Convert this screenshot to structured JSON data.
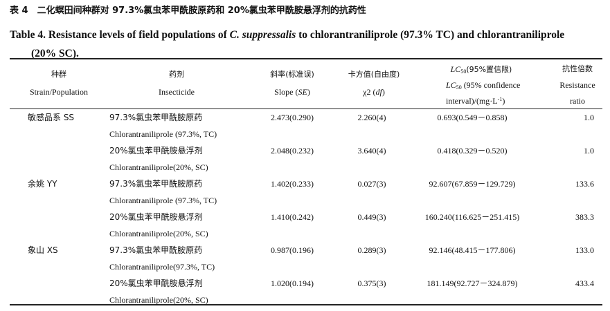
{
  "title_cn": "表 4　二化螟田间种群对 97.3%氯虫苯甲酰胺原药和 20%氯虫苯甲酰胺悬浮剂的抗药性",
  "title_en": [
    "Table 4. Resistance levels of field populations of ",
    "C. suppressalis",
    " to chlorantraniliprole (97.3% TC) and chlorantraniliprole",
    "(20% SC)."
  ],
  "header": {
    "strain": [
      "种群",
      "Strain/Population"
    ],
    "insecticide": [
      "药剂",
      "Insecticide"
    ],
    "slope": [
      "斜率(标准误)",
      [
        "Slope (",
        "SE",
        ")"
      ]
    ],
    "chi2": [
      "卡方值(自由度)",
      [
        "χ2 (",
        "df",
        ")"
      ]
    ],
    "lc50": [
      [
        "LC",
        "50",
        "(95%置信限)"
      ],
      [
        "LC",
        "50",
        " (95% confidence"
      ],
      [
        "interval)/(mg·L",
        "-1",
        ")"
      ]
    ],
    "ratio": [
      "抗性倍数",
      "Resistance",
      "ratio"
    ]
  },
  "populations": [
    {
      "name": "敏感品系 SS",
      "rows": [
        {
          "insecticide_cn": "97.3%氯虫苯甲酰胺原药",
          "insecticide_en": "Chlorantraniliprole (97.3%, TC)",
          "slope": "2.473(0.290)",
          "chi2": "2.260(4)",
          "lc50": "0.693(0.549－0.858)",
          "ratio": "1.0"
        },
        {
          "insecticide_cn": "20%氯虫苯甲酰胺悬浮剂",
          "insecticide_en": "Chlorantraniliprole(20%, SC)",
          "slope": "2.048(0.232)",
          "chi2": "3.640(4)",
          "lc50": "0.418(0.329－0.520)",
          "ratio": "1.0"
        }
      ]
    },
    {
      "name": "余姚 YY",
      "rows": [
        {
          "insecticide_cn": "97.3%氯虫苯甲酰胺原药",
          "insecticide_en": "Chlorantraniliprole (97.3%, TC)",
          "slope": "1.402(0.233)",
          "chi2": "0.027(3)",
          "lc50": "92.607(67.859－129.729)",
          "ratio": "133.6"
        },
        {
          "insecticide_cn": "20%氯虫苯甲酰胺悬浮剂",
          "insecticide_en": "Chlorantraniliprole(20%, SC)",
          "slope": "1.410(0.242)",
          "chi2": "0.449(3)",
          "lc50": "160.240(116.625－251.415)",
          "ratio": "383.3"
        }
      ]
    },
    {
      "name": "象山 XS",
      "rows": [
        {
          "insecticide_cn": "97.3%氯虫苯甲酰胺原药",
          "insecticide_en": "Chlorantraniliprole(97.3%, TC)",
          "slope": "0.987(0.196)",
          "chi2": "0.289(3)",
          "lc50": "92.146(48.415－177.806)",
          "ratio": "133.0"
        },
        {
          "insecticide_cn": "20%氯虫苯甲酰胺悬浮剂",
          "insecticide_en": "Chlorantraniliprole(20%, SC)",
          "slope": "1.020(0.194)",
          "chi2": "0.375(3)",
          "lc50": "181.149(92.727－324.879)",
          "ratio": "433.4"
        }
      ]
    }
  ]
}
